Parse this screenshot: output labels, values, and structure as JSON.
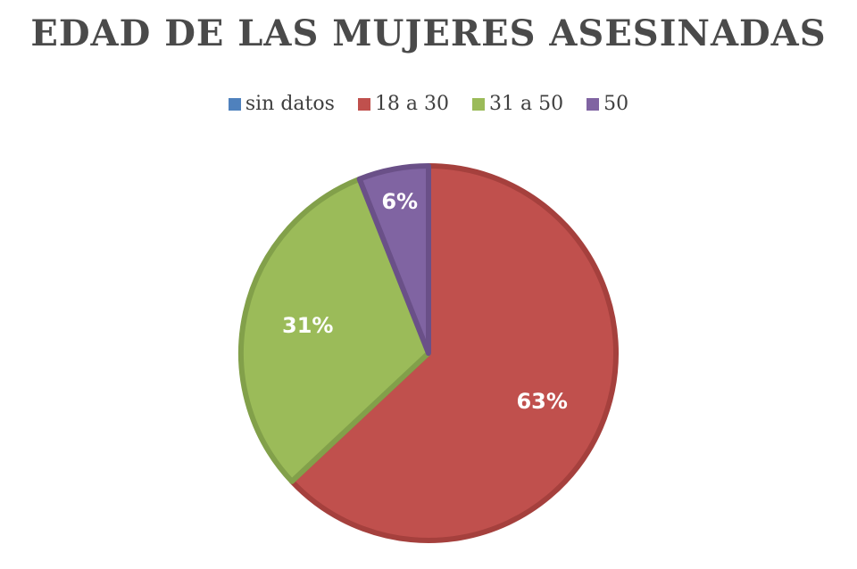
{
  "chart_data": {
    "type": "pie",
    "title": "EDAD DE LAS MUJERES ASESINADAS",
    "legend_position": "top",
    "categories": [
      "sin datos",
      "18 a 30",
      "31 a 50",
      "50"
    ],
    "values": [
      0,
      63,
      31,
      6
    ],
    "labels": [
      "",
      "63%",
      "31%",
      "6%"
    ],
    "colors": [
      "#4f81bd",
      "#c0504d",
      "#9bbb59",
      "#8064a2"
    ],
    "border_colors": [
      "#3e6a9e",
      "#a5403d",
      "#82a04a",
      "#6a5088"
    ]
  }
}
